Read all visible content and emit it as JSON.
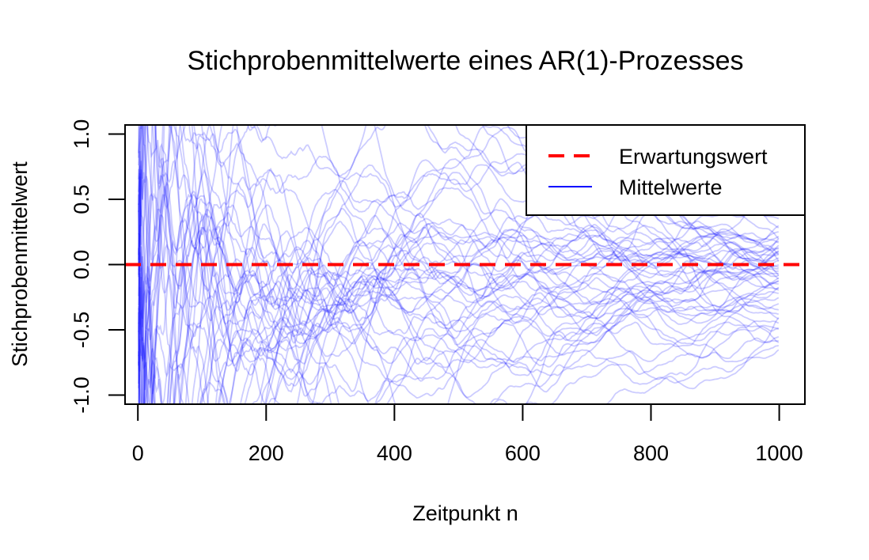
{
  "chart_data": {
    "type": "line",
    "title": "Stichprobenmittelwerte eines AR(1)-Prozesses",
    "xlabel": "Zeitpunkt n",
    "ylabel": "Stichprobenmittelwert",
    "xlim": [
      -20,
      1040
    ],
    "ylim": [
      -1.07,
      1.07
    ],
    "x_ticks": [
      "0",
      "200",
      "400",
      "600",
      "800",
      "1000"
    ],
    "y_ticks": [
      "-1.0",
      "-0.5",
      "0.0",
      "0.5",
      "1.0"
    ],
    "x_tick_values": [
      0,
      200,
      400,
      600,
      800,
      1000
    ],
    "y_tick_values": [
      -1.0,
      -0.5,
      0.0,
      0.5,
      1.0
    ],
    "n_max": 1000,
    "legend": {
      "position": "top-right",
      "entries": [
        "Erwartungswert",
        "Mittelwerte"
      ]
    },
    "reference_line": {
      "name": "Erwartungswert",
      "y": 0.0,
      "style": "dashed",
      "color": "#ff0000"
    },
    "series": [
      {
        "name": "Mittelwerte",
        "count": 50,
        "color": "#0000ff",
        "opacity": 0.2,
        "final_values": [
          0.25,
          0.22,
          0.2,
          0.18,
          0.15,
          0.12,
          0.1,
          0.08,
          0.05,
          0.03,
          0.0,
          -0.02,
          -0.05,
          -0.08,
          -0.1,
          -0.12,
          -0.15,
          -0.18,
          -0.2,
          -0.22,
          -0.25,
          -0.3,
          -0.35,
          -0.4,
          -0.42,
          -0.45,
          -0.5,
          -0.55,
          -0.6,
          -0.62,
          -0.65,
          0.28,
          0.3,
          0.35,
          0.02,
          -0.03,
          0.07,
          -0.07,
          0.13,
          -0.13,
          0.17,
          -0.17,
          0.09,
          -0.09,
          0.11,
          -0.11,
          -0.38,
          -0.48,
          0.19,
          -0.58
        ]
      }
    ]
  }
}
